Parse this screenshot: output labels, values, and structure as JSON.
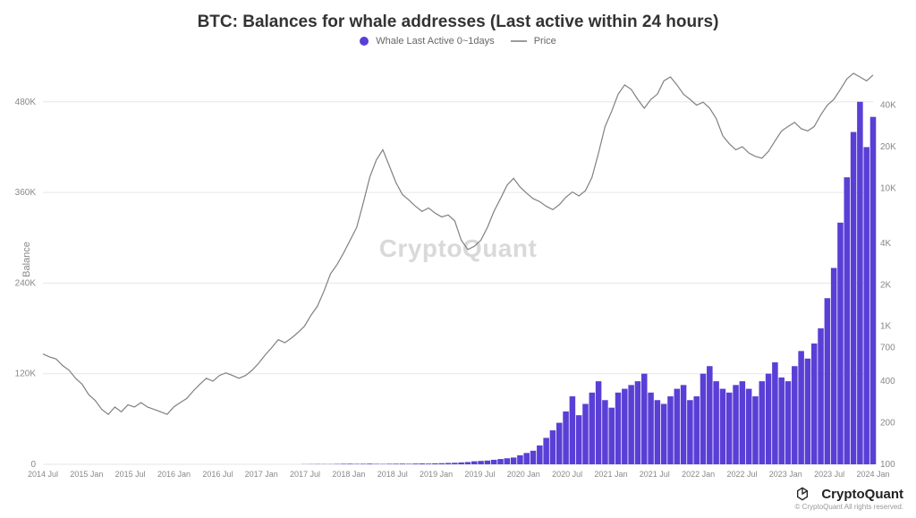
{
  "title": "BTC: Balances for whale addresses (Last active within 24 hours)",
  "title_fontsize": 19,
  "legend": {
    "series1": {
      "label": "Whale Last Active 0~1days",
      "swatch_color": "#5a3fd6",
      "type": "dot"
    },
    "series2": {
      "label": "Price",
      "swatch_color": "#9b9b9b",
      "type": "line"
    }
  },
  "watermark": "CryptoQuant",
  "branding": {
    "name": "CryptoQuant",
    "copyright": "© CryptoQuant All rights reserved."
  },
  "y_label_left": "Balance",
  "chart": {
    "type": "combo-bar-line-dual-axis",
    "background_color": "#ffffff",
    "bar_color": "#5a3fd6",
    "price_line_color": "#808080",
    "grid_color": "#e6e6e6",
    "left_axis": {
      "label": "Balance",
      "scale": "linear",
      "min": 0,
      "max": 520000,
      "ticks": [
        0,
        120000,
        240000,
        360000,
        480000
      ],
      "tick_labels": [
        "0",
        "120K",
        "240K",
        "360K",
        "480K"
      ]
    },
    "right_axis": {
      "label": "",
      "scale": "log",
      "min": 100,
      "max": 70000,
      "ticks": [
        100,
        200,
        400,
        700,
        1000,
        2000,
        4000,
        10000,
        20000,
        40000
      ],
      "tick_labels": [
        "100",
        "200",
        "400",
        "700",
        "1K",
        "2K",
        "4K",
        "10K",
        "20K",
        "40K"
      ]
    },
    "x_axis": {
      "ticks": [
        "2014 Jul",
        "2015 Jan",
        "2015 Jul",
        "2016 Jan",
        "2016 Jul",
        "2017 Jan",
        "2017 Jul",
        "2018 Jan",
        "2018 Jul",
        "2019 Jan",
        "2019 Jul",
        "2020 Jan",
        "2020 Jul",
        "2021 Jan",
        "2021 Jul",
        "2022 Jan",
        "2022 Jul",
        "2023 Jan",
        "2023 Jul",
        "2024 Jan"
      ],
      "n_points": 128
    },
    "balance_series": [
      0,
      0,
      0,
      0,
      0,
      0,
      0,
      0,
      0,
      0,
      0,
      0,
      0,
      0,
      0,
      0,
      0,
      0,
      0,
      0,
      0,
      0,
      0,
      0,
      0,
      0,
      0,
      0,
      0,
      0,
      0,
      0,
      0,
      0,
      0,
      0,
      0,
      0,
      0,
      0,
      200,
      300,
      400,
      350,
      300,
      500,
      700,
      800,
      600,
      700,
      900,
      600,
      500,
      700,
      800,
      900,
      700,
      1000,
      1200,
      1000,
      1300,
      1500,
      1800,
      2000,
      2500,
      3000,
      4000,
      4500,
      5000,
      6000,
      7000,
      8000,
      9000,
      12000,
      15000,
      18000,
      25000,
      35000,
      45000,
      55000,
      70000,
      90000,
      65000,
      80000,
      95000,
      110000,
      85000,
      75000,
      95000,
      100000,
      105000,
      110000,
      120000,
      95000,
      85000,
      80000,
      90000,
      100000,
      105000,
      85000,
      90000,
      120000,
      130000,
      110000,
      100000,
      95000,
      105000,
      110000,
      100000,
      90000,
      110000,
      120000,
      135000,
      115000,
      110000,
      130000,
      150000,
      140000,
      160000,
      180000,
      220000,
      260000,
      320000,
      380000,
      440000,
      480000,
      420000,
      460000
    ],
    "price_series": [
      630,
      600,
      580,
      520,
      480,
      420,
      380,
      320,
      290,
      250,
      230,
      260,
      240,
      270,
      260,
      280,
      260,
      250,
      240,
      230,
      260,
      280,
      300,
      340,
      380,
      420,
      400,
      440,
      460,
      440,
      420,
      440,
      480,
      540,
      620,
      700,
      800,
      760,
      820,
      900,
      1000,
      1200,
      1400,
      1800,
      2400,
      2800,
      3400,
      4200,
      5200,
      7800,
      12000,
      16000,
      19000,
      14500,
      11000,
      9000,
      8200,
      7400,
      6800,
      7200,
      6600,
      6200,
      6400,
      5800,
      4200,
      3600,
      3800,
      4200,
      5200,
      6800,
      8400,
      10500,
      11800,
      10200,
      9200,
      8400,
      8000,
      7400,
      7000,
      7600,
      8600,
      9400,
      8800,
      9600,
      12000,
      18000,
      28000,
      36000,
      48000,
      56000,
      52000,
      44000,
      38000,
      44000,
      48000,
      60000,
      64000,
      56000,
      48000,
      44000,
      40000,
      42000,
      38000,
      32000,
      24000,
      21000,
      19000,
      20000,
      18000,
      17000,
      16500,
      18500,
      22000,
      26000,
      28000,
      30000,
      27000,
      26000,
      28000,
      34000,
      40000,
      44000,
      52000,
      62000,
      68000,
      64000,
      60000,
      66000
    ]
  }
}
